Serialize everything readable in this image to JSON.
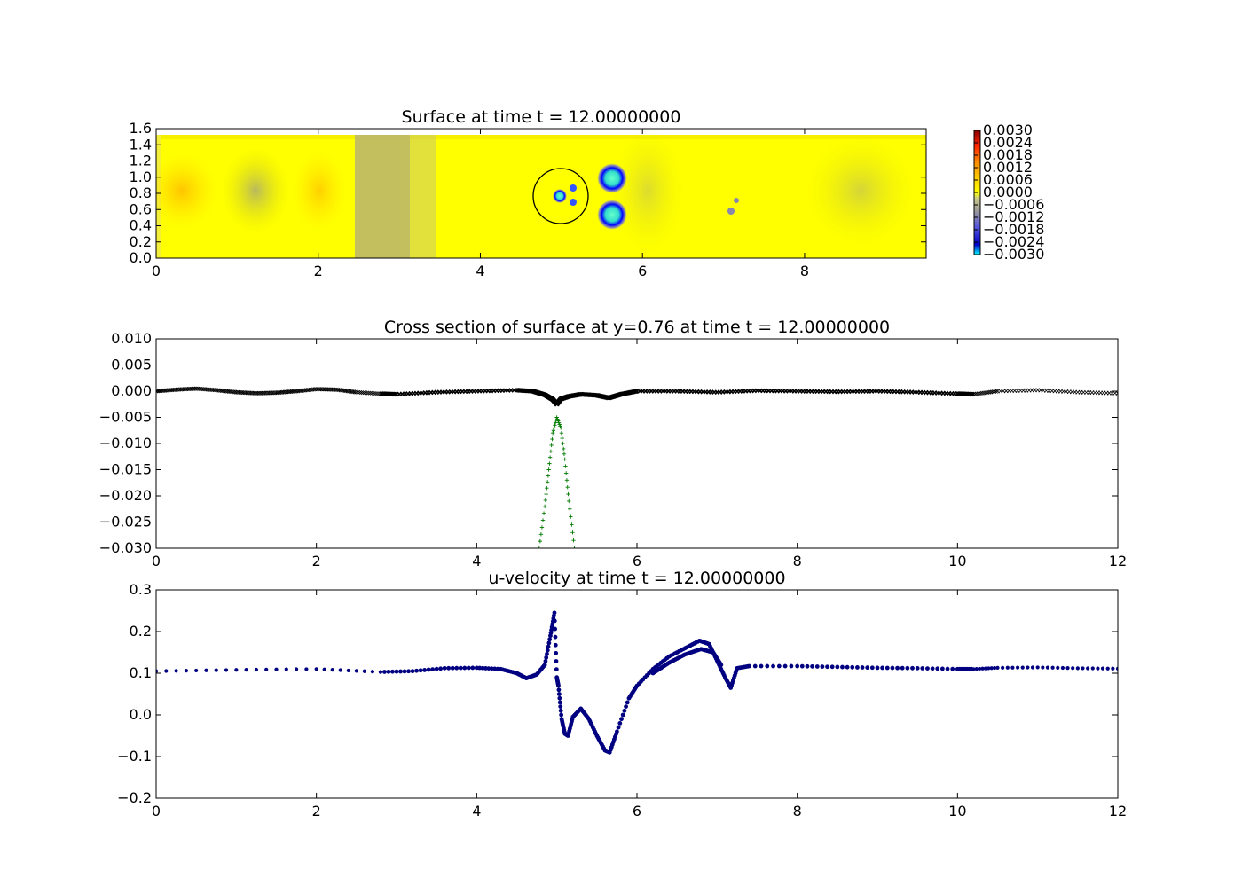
{
  "chart_data": [
    {
      "type": "heatmap",
      "title": "Surface at time t =    12.00000000",
      "xlim": [
        0,
        9.5
      ],
      "ylim": [
        0,
        1.6
      ],
      "xticks": [
        "0",
        "2",
        "4",
        "6",
        "8"
      ],
      "yticks": [
        "0.0",
        "0.2",
        "0.4",
        "0.6",
        "0.8",
        "1.0",
        "1.2",
        "1.4",
        "1.6"
      ],
      "colorbar": {
        "range": [
          -0.003,
          0.003
        ],
        "ticks": [
          "0.0030",
          "0.0024",
          "0.0018",
          "0.0012",
          "0.0006",
          "0.0000",
          "−0.0006",
          "−0.0012",
          "−0.0018",
          "−0.0024",
          "−0.0030"
        ],
        "colors": [
          "#00ffff",
          "#0000cc",
          "#5555dd",
          "#999999",
          "#c8c88c",
          "#ffff00",
          "#ffcc00",
          "#ff8800",
          "#ff2200",
          "#880000"
        ]
      },
      "features": [
        {
          "kind": "depression",
          "x": 5.62,
          "y": 1.0,
          "value": -0.003
        },
        {
          "kind": "depression",
          "x": 5.62,
          "y": 0.55,
          "value": -0.003
        },
        {
          "kind": "depression",
          "x": 4.98,
          "y": 0.76,
          "value": -0.003
        },
        {
          "kind": "depression",
          "x": 5.17,
          "y": 0.86,
          "value": -0.0018
        },
        {
          "kind": "depression",
          "x": 5.17,
          "y": 0.68,
          "value": -0.0018
        },
        {
          "kind": "depression",
          "x": 7.12,
          "y": 0.6,
          "value": -0.001
        },
        {
          "kind": "circle",
          "x": 5.0,
          "y": 0.76,
          "radius": 0.35
        }
      ]
    },
    {
      "type": "scatter",
      "title": "Cross section of surface at y=0.76 at time t =    12.00000000",
      "xlim": [
        0,
        12
      ],
      "ylim": [
        -0.03,
        0.01
      ],
      "xticks": [
        "0",
        "2",
        "4",
        "6",
        "8",
        "10",
        "12"
      ],
      "yticks": [
        "0.010",
        "0.005",
        "0.000",
        "−0.005",
        "−0.010",
        "−0.015",
        "−0.020",
        "−0.025",
        "−0.030"
      ],
      "series": [
        {
          "marker": "x",
          "color": "#000000",
          "x": [
            0,
            0.25,
            0.5,
            0.75,
            1.0,
            1.25,
            1.5,
            1.75,
            2.0,
            2.25,
            2.5,
            2.8,
            3.0,
            3.5,
            4.0,
            4.5,
            4.7,
            4.85,
            4.95,
            5.0,
            5.05,
            5.15,
            5.3,
            5.5,
            5.65,
            5.8,
            6.0,
            6.5,
            7.0,
            7.5,
            8.0,
            8.5,
            9.0,
            9.5,
            10.0,
            10.2,
            10.5,
            11.0,
            11.5,
            12.0
          ],
          "y": [
            0.0,
            0.0003,
            0.0005,
            0.0002,
            -0.0002,
            -0.0004,
            -0.0003,
            0.0,
            0.0004,
            0.0003,
            -0.0002,
            -0.0005,
            -0.0006,
            -0.0002,
            0.0,
            0.0002,
            0.0,
            -0.0007,
            -0.0016,
            -0.0025,
            -0.0015,
            -0.001,
            -0.0006,
            -0.0008,
            -0.0013,
            -0.0006,
            0.0,
            0.0,
            -0.0002,
            0.0001,
            0.0,
            -0.0001,
            0.0,
            -0.0002,
            -0.0005,
            -0.0006,
            0.0,
            0.0002,
            -0.0002,
            -0.0004
          ]
        },
        {
          "marker": "+",
          "color": "#007a00",
          "x": [
            4.78,
            4.85,
            4.9,
            4.95,
            5.0,
            5.05,
            5.1,
            5.15,
            5.22
          ],
          "y": [
            -0.03,
            -0.022,
            -0.015,
            -0.008,
            -0.005,
            -0.007,
            -0.013,
            -0.021,
            -0.03
          ]
        }
      ]
    },
    {
      "type": "scatter",
      "title": "u-velocity at time t =    12.00000000",
      "xlim": [
        0,
        12
      ],
      "ylim": [
        -0.2,
        0.3
      ],
      "xticks": [
        "0",
        "2",
        "4",
        "6",
        "8",
        "10",
        "12"
      ],
      "yticks": [
        "0.3",
        "0.2",
        "0.1",
        "0.0",
        "−0.1",
        "−0.2"
      ],
      "series": [
        {
          "marker": "o",
          "color": "#000080",
          "x": [
            0,
            1.0,
            2.0,
            2.8,
            3.2,
            3.6,
            4.0,
            4.3,
            4.5,
            4.62,
            4.75,
            4.85,
            4.92,
            4.97,
            5.0,
            5.02,
            5.06,
            5.1,
            5.14,
            5.2,
            5.3,
            5.4,
            5.5,
            5.6,
            5.66,
            5.75,
            5.9,
            6.0,
            6.2,
            6.4,
            6.6,
            6.78,
            6.9,
            7.0,
            7.1,
            7.17,
            7.25,
            7.4,
            8.0,
            8.5,
            9.0,
            9.5,
            10.0,
            10.2,
            10.5,
            11.0,
            11.5,
            12.0
          ],
          "y": [
            0.105,
            0.108,
            0.11,
            0.103,
            0.105,
            0.112,
            0.113,
            0.11,
            0.1,
            0.088,
            0.097,
            0.12,
            0.19,
            0.245,
            0.09,
            0.07,
            -0.01,
            -0.045,
            -0.05,
            -0.005,
            0.015,
            -0.01,
            -0.05,
            -0.085,
            -0.09,
            -0.04,
            0.04,
            0.07,
            0.11,
            0.14,
            0.16,
            0.178,
            0.17,
            0.13,
            0.09,
            0.065,
            0.112,
            0.117,
            0.117,
            0.115,
            0.113,
            0.112,
            0.11,
            0.11,
            0.113,
            0.114,
            0.112,
            0.111
          ]
        },
        {
          "marker": "o",
          "color": "#000080",
          "x": [
            6.2,
            6.4,
            6.6,
            6.8,
            6.95,
            7.05
          ],
          "y": [
            0.1,
            0.125,
            0.145,
            0.158,
            0.15,
            0.12
          ]
        }
      ]
    }
  ]
}
